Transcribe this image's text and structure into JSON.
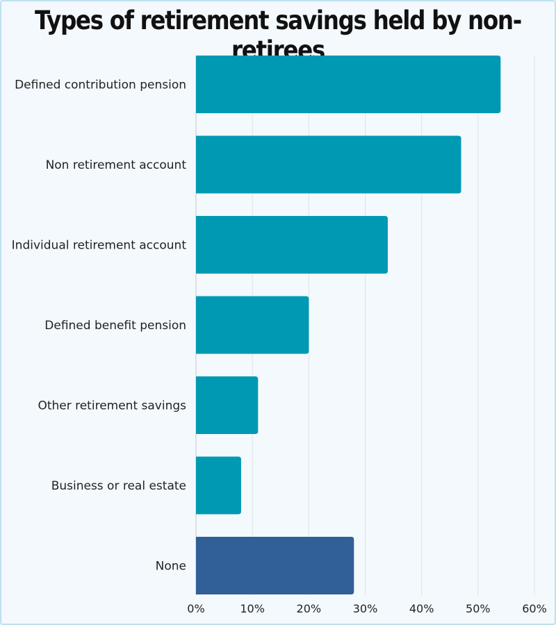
{
  "chart_data": {
    "type": "bar",
    "orientation": "horizontal",
    "title": "Types of retirement savings held by non-retirees",
    "categories": [
      "Defined contribution pension",
      "Non retirement account",
      "Individual retirement account",
      "Defined benefit pension",
      "Other retirement savings",
      "Business or real estate",
      "None"
    ],
    "values": [
      54,
      47,
      34,
      20,
      11,
      8,
      28
    ],
    "unit": "%",
    "xlim": [
      0,
      60
    ],
    "xticks": [
      "0%",
      "10%",
      "20%",
      "30%",
      "40%",
      "50%",
      "60%"
    ],
    "grid": true,
    "colors": [
      "#0099b3",
      "#0099b3",
      "#0099b3",
      "#0099b3",
      "#0099b3",
      "#0099b3",
      "#315f97"
    ]
  }
}
